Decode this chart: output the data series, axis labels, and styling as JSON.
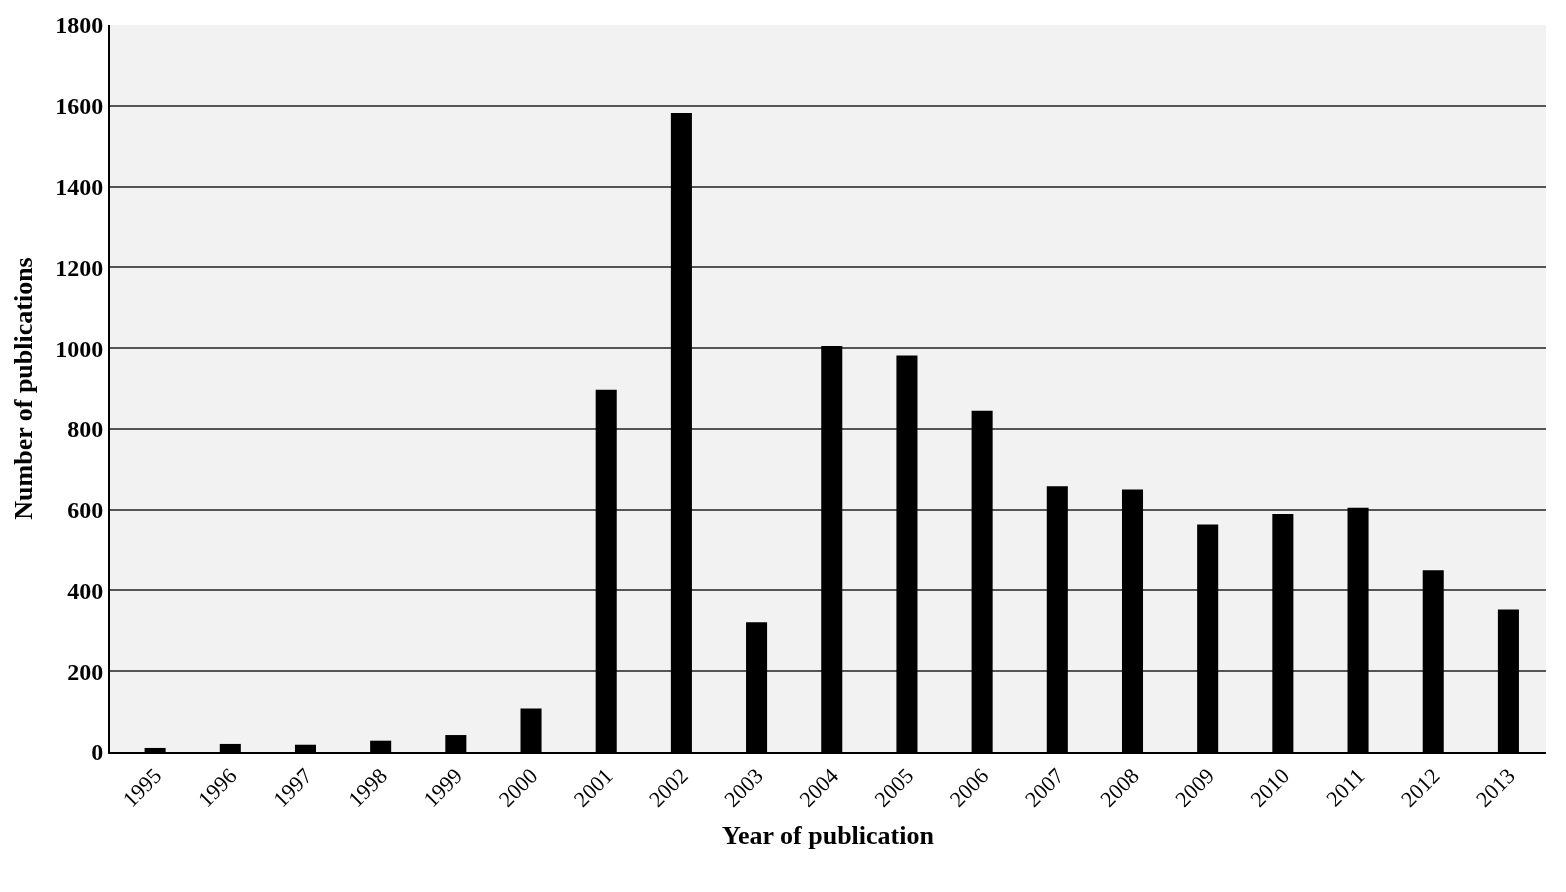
{
  "chart_data": {
    "type": "bar",
    "xlabel": "Year of publication",
    "ylabel": "Number of publications",
    "categories": [
      "1995",
      "1996",
      "1997",
      "1998",
      "1999",
      "2000",
      "2001",
      "2002",
      "2003",
      "2004",
      "2005",
      "2006",
      "2007",
      "2008",
      "2009",
      "2010",
      "2011",
      "2012",
      "2013"
    ],
    "values": [
      10,
      20,
      18,
      28,
      42,
      108,
      897,
      1582,
      321,
      1005,
      982,
      845,
      658,
      650,
      563,
      589,
      605,
      450,
      353
    ],
    "color": "#000000",
    "ylim": [
      0,
      1800
    ],
    "yticks": [
      0,
      200,
      400,
      600,
      800,
      1000,
      1200,
      1400,
      1600,
      1800
    ],
    "grid": "y"
  }
}
